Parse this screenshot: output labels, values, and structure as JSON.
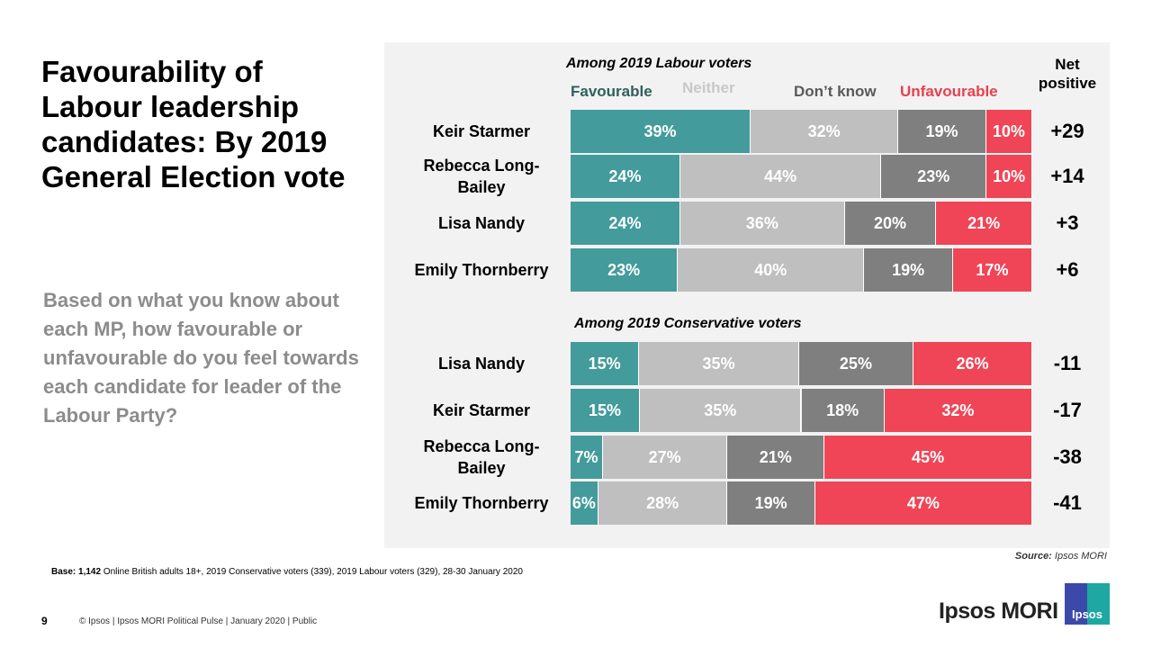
{
  "title": "Favourability of Labour leadership candidates: By 2019 General Election vote",
  "question": "Based on what you know about each MP, how favourable or unfavourable do you feel towards each candidate for leader of the Labour Party?",
  "colors": {
    "favourable": "#439b9b",
    "neither": "#bfbfbf",
    "dont_know": "#7f7f7f",
    "unfavourable": "#f04556"
  },
  "chart_data": {
    "type": "bar",
    "stacked": true,
    "orientation": "horizontal",
    "legend": [
      "Favourable",
      "Neither",
      "Don’t know",
      "Unfavourable"
    ],
    "net_header": "Net positive",
    "groups": [
      {
        "title": "Among 2019 Labour voters",
        "rows": [
          {
            "name": "Keir Starmer",
            "values": [
              39,
              32,
              19,
              10
            ],
            "net": "+29"
          },
          {
            "name": "Rebecca Long-Bailey",
            "values": [
              24,
              44,
              23,
              10
            ],
            "net": "+14"
          },
          {
            "name": "Lisa Nandy",
            "values": [
              24,
              36,
              20,
              21
            ],
            "net": "+3"
          },
          {
            "name": "Emily Thornberry",
            "values": [
              23,
              40,
              19,
              17
            ],
            "net": "+6"
          }
        ]
      },
      {
        "title": "Among 2019 Conservative voters",
        "rows": [
          {
            "name": "Lisa Nandy",
            "values": [
              15,
              35,
              25,
              26
            ],
            "net": "-11"
          },
          {
            "name": "Keir Starmer",
            "values": [
              15,
              35,
              18,
              32
            ],
            "net": "-17"
          },
          {
            "name": "Rebecca Long-Bailey",
            "values": [
              7,
              27,
              21,
              45
            ],
            "net": "-38"
          },
          {
            "name": "Emily Thornberry",
            "values": [
              6,
              28,
              19,
              47
            ],
            "net": "-41"
          }
        ]
      }
    ]
  },
  "base_label": "Base:",
  "base_count": "1,142",
  "base_text": "Online British adults 18+,  2019 Conservative voters (339), 2019 Labour voters (329), 28-30 January 2020",
  "source_label": "Source:",
  "source_value": "Ipsos MORI",
  "page_number": "9",
  "footer": "© Ipsos | Ipsos MORI  Political  Pulse | January 2020 | Public",
  "brand": "Ipsos MORI",
  "logo_text": "Ipsos"
}
